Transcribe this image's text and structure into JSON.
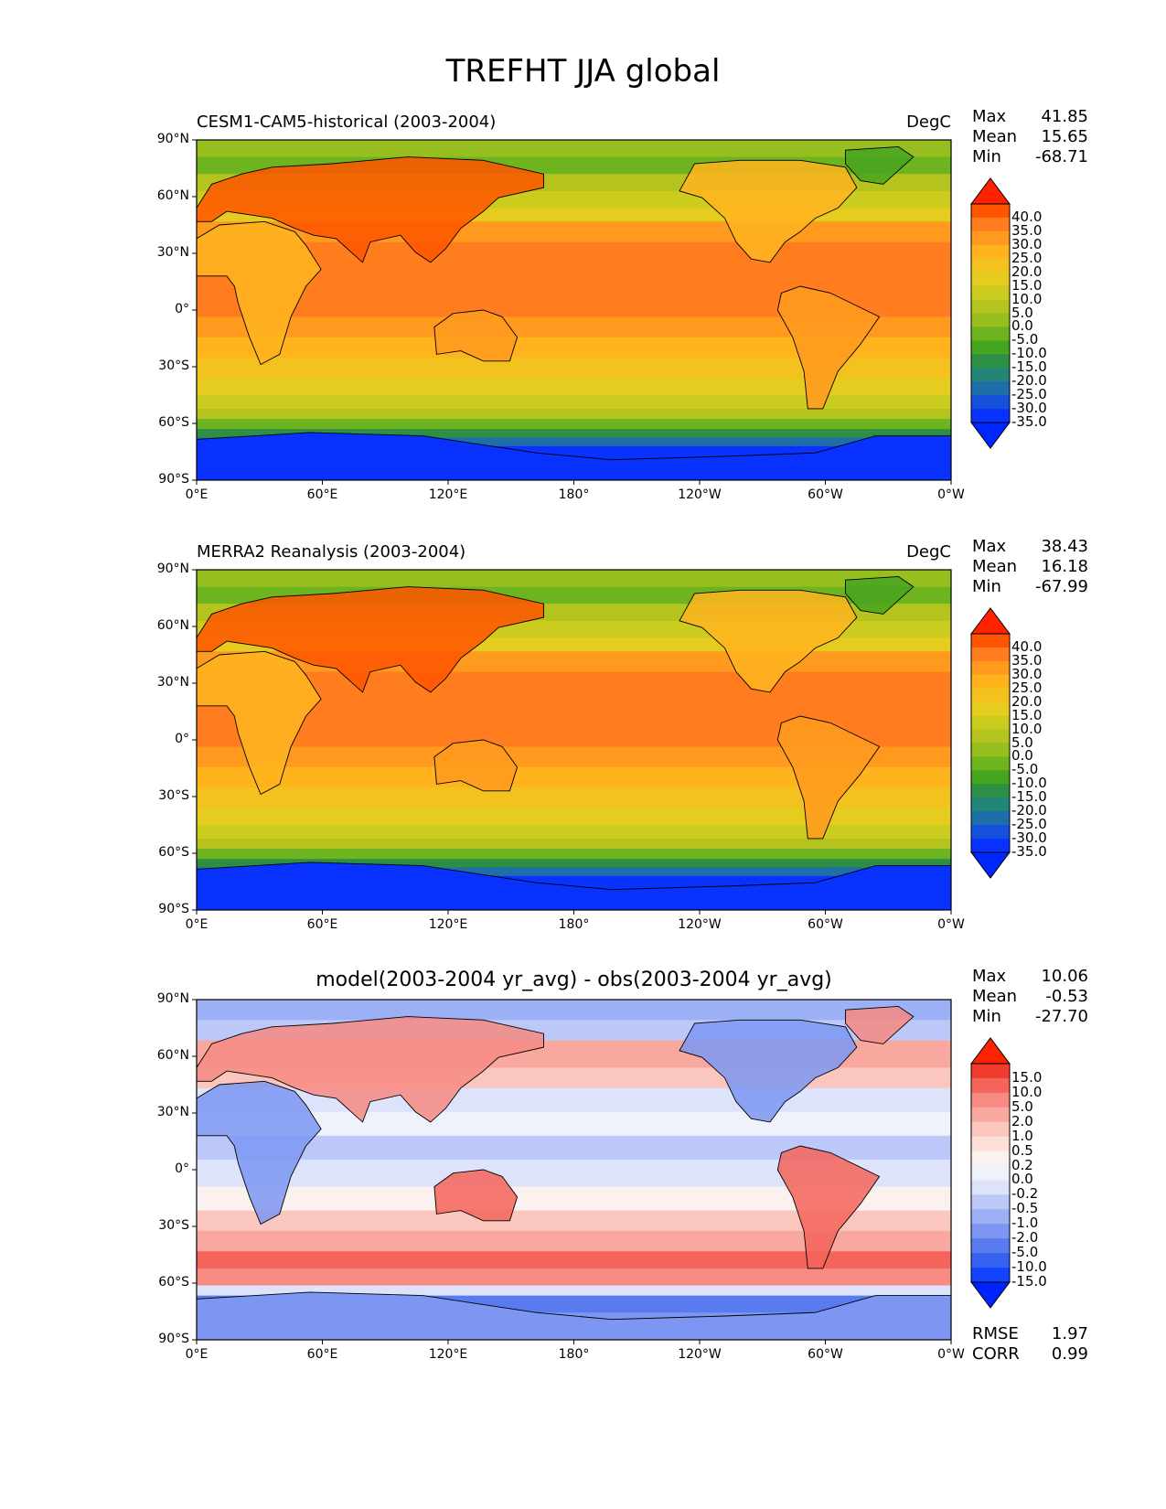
{
  "figure_title": "TREFHT JJA global",
  "x_ticks": [
    "0°E",
    "60°E",
    "120°E",
    "180°",
    "120°W",
    "60°W",
    "0°W"
  ],
  "y_ticks": [
    "90°N",
    "60°N",
    "30°N",
    "0°",
    "30°S",
    "60°S",
    "90°S"
  ],
  "temp_levels": [
    "40.0",
    "35.0",
    "30.0",
    "25.0",
    "20.0",
    "15.0",
    "10.0",
    "5.0",
    "0.0",
    "-5.0",
    "-10.0",
    "-15.0",
    "-20.0",
    "-25.0",
    "-30.0",
    "-35.0"
  ],
  "temp_colors": [
    "#ff2200",
    "#ff5500",
    "#ff7d1e",
    "#ff9a1e",
    "#ffb41e",
    "#f4c21e",
    "#e6cc1e",
    "#cccc1e",
    "#b4c31e",
    "#96be1e",
    "#6eb41e",
    "#46a51e",
    "#2d8f46",
    "#238478",
    "#1e6eaa",
    "#1450dc",
    "#0a32ff",
    "#0026ff"
  ],
  "diff_levels": [
    "15.0",
    "10.0",
    "5.0",
    "2.0",
    "1.0",
    "0.5",
    "0.2",
    "0.0",
    "-0.2",
    "-0.5",
    "-1.0",
    "-2.0",
    "-5.0",
    "-10.0",
    "-15.0"
  ],
  "diff_colors": [
    "#ff2200",
    "#f03c2d",
    "#f5645a",
    "#f78a82",
    "#f9a8a0",
    "#fbc6be",
    "#fde0da",
    "#fbf1ee",
    "#f0f2fb",
    "#dce3fb",
    "#bcc9f8",
    "#9cb0f5",
    "#7c96f2",
    "#5a7bef",
    "#3461f0",
    "#1244ff",
    "#0022ff"
  ],
  "panels": [
    {
      "title": "CESM1-CAM5-historical (2003-2004)",
      "units": "DegC",
      "stats": [
        {
          "label": "Max",
          "value": "41.85"
        },
        {
          "label": "Mean",
          "value": "15.65"
        },
        {
          "label": "Min",
          "value": "-68.71"
        }
      ]
    },
    {
      "title": "MERRA2 Reanalysis (2003-2004)",
      "units": "DegC",
      "stats": [
        {
          "label": "Max",
          "value": "38.43"
        },
        {
          "label": "Mean",
          "value": "16.18"
        },
        {
          "label": "Min",
          "value": "-67.99"
        }
      ]
    },
    {
      "title": "model(2003-2004 yr_avg) - obs(2003-2004 yr_avg)",
      "units": "",
      "stats": [
        {
          "label": "Max",
          "value": "10.06"
        },
        {
          "label": "Mean",
          "value": "-0.53"
        },
        {
          "label": "Min",
          "value": "-27.70"
        }
      ],
      "metrics": [
        {
          "label": "RMSE",
          "value": "1.97"
        },
        {
          "label": "CORR",
          "value": "0.99"
        }
      ]
    }
  ]
}
